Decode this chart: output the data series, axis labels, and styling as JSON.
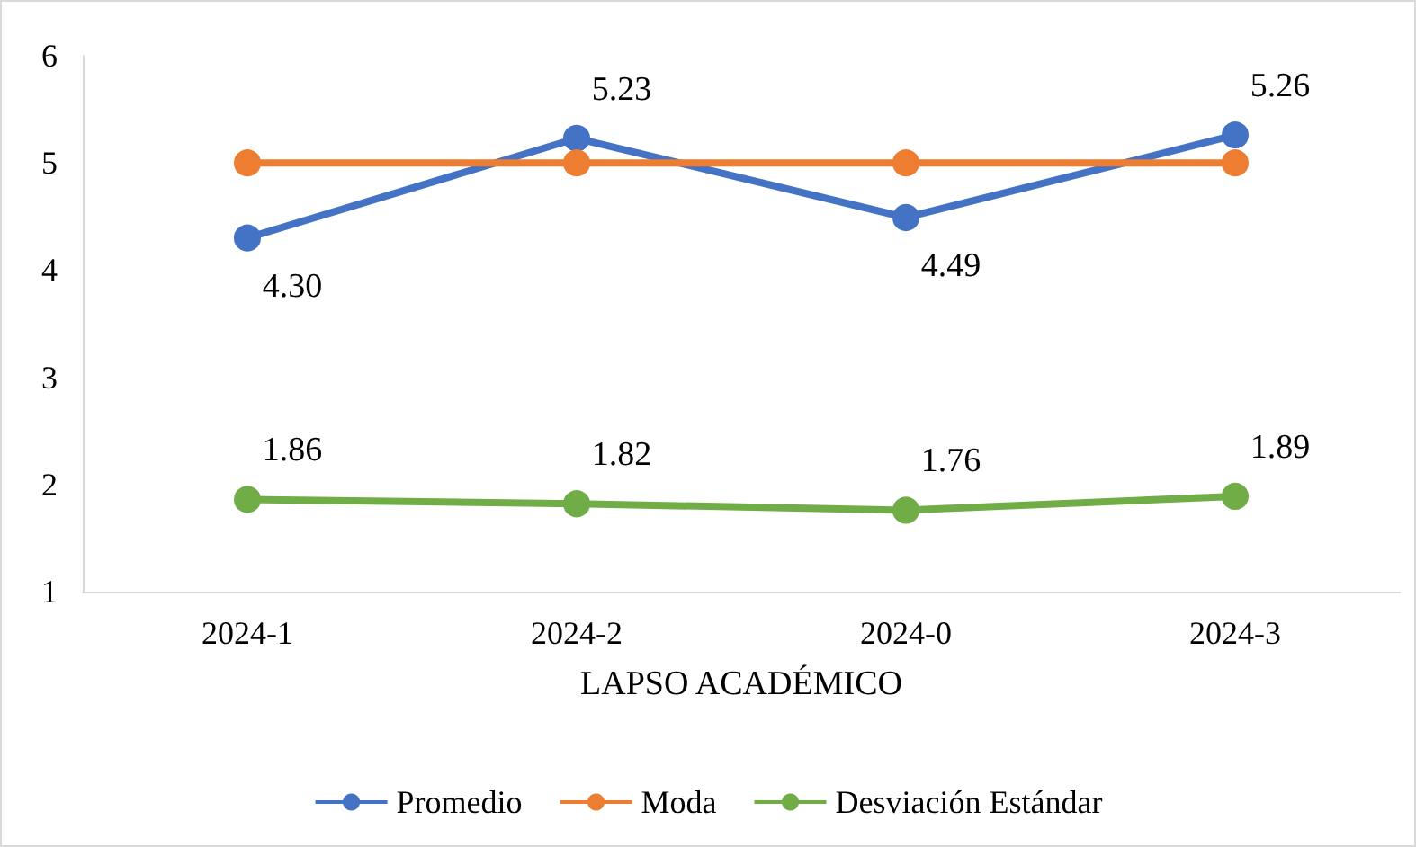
{
  "chart_data": {
    "type": "line",
    "xlabel": "LAPSO ACADÉMICO",
    "categories": [
      "2024-1",
      "2024-2",
      "2024-0",
      "2024-3"
    ],
    "series": [
      {
        "name": "Promedio",
        "color": "#4472c4",
        "values": [
          4.3,
          5.23,
          4.49,
          5.26
        ],
        "value_labels": [
          "4.30",
          "5.23",
          "4.49",
          "5.26"
        ]
      },
      {
        "name": "Moda",
        "color": "#ed7d31",
        "values": [
          5,
          5,
          5,
          5
        ]
      },
      {
        "name": "Desviación Estándar",
        "color": "#70ad47",
        "values": [
          1.86,
          1.82,
          1.76,
          1.89
        ],
        "value_labels": [
          "1.86",
          "1.82",
          "1.76",
          "1.89"
        ]
      }
    ],
    "ylim": [
      1,
      6
    ],
    "yticks": [
      1,
      2,
      3,
      4,
      5,
      6
    ],
    "grid": false,
    "legend": "bottom",
    "marker": "circle",
    "line_style": "solid"
  }
}
